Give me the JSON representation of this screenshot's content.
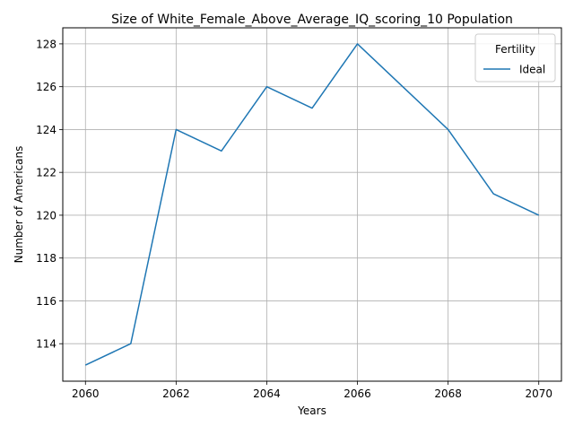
{
  "chart_data": {
    "type": "line",
    "title": "Size of White_Female_Above_Average_IQ_scoring_10 Population",
    "xlabel": "Years",
    "ylabel": "Number of Americans",
    "x": [
      2060,
      2061,
      2062,
      2063,
      2064,
      2065,
      2066,
      2067,
      2068,
      2069,
      2070
    ],
    "series": [
      {
        "name": "Ideal",
        "values": [
          113,
          114,
          124,
          123,
          126,
          125,
          128,
          126,
          124,
          121,
          120
        ],
        "color": "#1f77b4"
      }
    ],
    "xlim": [
      2059.5,
      2070.5
    ],
    "ylim": [
      112.25,
      128.75
    ],
    "xticks": [
      2060,
      2062,
      2064,
      2066,
      2068,
      2070
    ],
    "yticks": [
      114,
      116,
      118,
      120,
      122,
      124,
      126,
      128
    ],
    "grid": true,
    "legend": {
      "title": "Fertility",
      "position": "top-right"
    }
  }
}
